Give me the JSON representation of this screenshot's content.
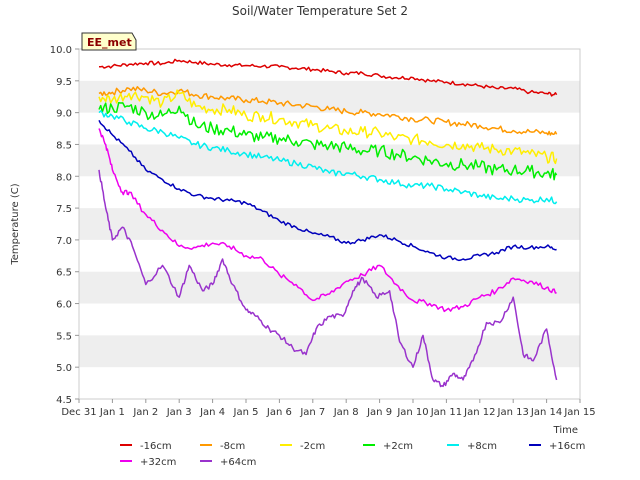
{
  "chart_data": {
    "type": "line",
    "title": "Soil/Water Temperature Set 2",
    "xlabel": "Time",
    "ylabel": "Temperature (C)",
    "site_label": "EE_met",
    "ylim": [
      4.5,
      10.0
    ],
    "yticks": [
      "4.5",
      "5.0",
      "5.5",
      "6.0",
      "6.5",
      "7.0",
      "7.5",
      "8.0",
      "8.5",
      "9.0",
      "9.5",
      "10.0"
    ],
    "xlim": [
      0,
      15
    ],
    "xticks": [
      "Dec 31",
      "Jan 1",
      "Jan 2",
      "Jan 3",
      "Jan 4",
      "Jan 5",
      "Jan 6",
      "Jan 7",
      "Jan 8",
      "Jan 9",
      "Jan 10",
      "Jan 11",
      "Jan 12",
      "Jan 13",
      "Jan 14",
      "Jan 15"
    ],
    "grid": "horizontal bands",
    "legend_position": "bottom",
    "series": [
      {
        "name": "-16cm",
        "color": "#dd0000",
        "x": [
          0.6,
          1.0,
          1.5,
          2.0,
          2.5,
          3.0,
          3.5,
          4.0,
          4.5,
          5.0,
          5.5,
          6.0,
          6.5,
          7.0,
          7.5,
          8.0,
          8.5,
          9.0,
          9.5,
          10.0,
          10.5,
          11.0,
          11.5,
          12.0,
          12.5,
          13.0,
          13.5,
          14.0,
          14.3
        ],
        "y": [
          9.72,
          9.73,
          9.76,
          9.78,
          9.77,
          9.82,
          9.79,
          9.76,
          9.75,
          9.74,
          9.73,
          9.72,
          9.7,
          9.68,
          9.65,
          9.62,
          9.62,
          9.58,
          9.55,
          9.55,
          9.5,
          9.48,
          9.45,
          9.42,
          9.38,
          9.38,
          9.32,
          9.3,
          9.28
        ]
      },
      {
        "name": "-8cm",
        "color": "#ff9900",
        "x": [
          0.6,
          1.0,
          1.5,
          2.0,
          2.5,
          3.0,
          3.5,
          4.0,
          4.5,
          5.0,
          5.5,
          6.0,
          6.5,
          7.0,
          7.5,
          8.0,
          8.5,
          9.0,
          9.5,
          10.0,
          10.5,
          11.0,
          11.5,
          12.0,
          12.5,
          13.0,
          13.5,
          14.0,
          14.3
        ],
        "y": [
          9.3,
          9.32,
          9.38,
          9.35,
          9.3,
          9.35,
          9.28,
          9.25,
          9.22,
          9.2,
          9.18,
          9.15,
          9.12,
          9.1,
          9.05,
          9.02,
          9.0,
          8.98,
          8.95,
          8.9,
          8.88,
          8.85,
          8.82,
          8.8,
          8.75,
          8.72,
          8.7,
          8.68,
          8.66
        ]
      },
      {
        "name": "-2cm",
        "color": "#ffee00",
        "x": [
          0.6,
          1.0,
          1.5,
          2.0,
          2.5,
          3.0,
          3.5,
          4.0,
          4.5,
          5.0,
          5.5,
          6.0,
          6.5,
          7.0,
          7.5,
          8.0,
          8.5,
          9.0,
          9.5,
          10.0,
          10.5,
          11.0,
          11.5,
          12.0,
          12.5,
          13.0,
          13.5,
          14.0,
          14.3
        ],
        "y": [
          9.25,
          9.2,
          9.3,
          9.25,
          9.15,
          9.3,
          9.1,
          9.05,
          9.05,
          8.95,
          8.95,
          8.9,
          8.85,
          8.8,
          8.75,
          8.7,
          8.7,
          8.68,
          8.6,
          8.58,
          8.55,
          8.5,
          8.5,
          8.45,
          8.42,
          8.4,
          8.35,
          8.3,
          8.28
        ]
      },
      {
        "name": "+2cm",
        "color": "#00ee00",
        "x": [
          0.6,
          1.0,
          1.5,
          2.0,
          2.5,
          3.0,
          3.5,
          4.0,
          4.5,
          5.0,
          5.5,
          6.0,
          6.5,
          7.0,
          7.5,
          8.0,
          8.5,
          9.0,
          9.5,
          10.0,
          10.5,
          11.0,
          11.5,
          12.0,
          12.5,
          13.0,
          13.5,
          14.0,
          14.3
        ],
        "y": [
          9.05,
          9.08,
          9.1,
          9.0,
          8.95,
          9.1,
          8.8,
          8.75,
          8.72,
          8.65,
          8.6,
          8.6,
          8.55,
          8.5,
          8.48,
          8.45,
          8.4,
          8.4,
          8.35,
          8.3,
          8.25,
          8.2,
          8.18,
          8.15,
          8.1,
          8.1,
          8.08,
          8.05,
          8.02
        ]
      },
      {
        "name": "+8cm",
        "color": "#00eeee",
        "x": [
          0.6,
          1.0,
          1.5,
          2.0,
          2.5,
          3.0,
          3.5,
          4.0,
          4.5,
          5.0,
          5.5,
          6.0,
          6.5,
          7.0,
          7.5,
          8.0,
          8.5,
          9.0,
          9.5,
          10.0,
          10.5,
          11.0,
          11.5,
          12.0,
          12.5,
          13.0,
          13.5,
          14.0,
          14.3
        ],
        "y": [
          9.0,
          8.95,
          8.85,
          8.75,
          8.7,
          8.6,
          8.5,
          8.45,
          8.4,
          8.35,
          8.3,
          8.25,
          8.2,
          8.15,
          8.05,
          8.05,
          8.0,
          7.95,
          7.9,
          7.85,
          7.85,
          7.8,
          7.75,
          7.7,
          7.65,
          7.65,
          7.62,
          7.65,
          7.6
        ]
      },
      {
        "name": "+16cm",
        "color": "#0000bb",
        "x": [
          0.6,
          1.0,
          1.5,
          2.0,
          2.5,
          3.0,
          3.5,
          4.0,
          4.5,
          5.0,
          5.5,
          6.0,
          6.5,
          7.0,
          7.5,
          8.0,
          8.5,
          9.0,
          9.5,
          10.0,
          10.5,
          11.0,
          11.5,
          12.0,
          12.5,
          13.0,
          13.5,
          14.0,
          14.3
        ],
        "y": [
          8.88,
          8.65,
          8.4,
          8.1,
          7.95,
          7.8,
          7.7,
          7.65,
          7.62,
          7.58,
          7.45,
          7.3,
          7.2,
          7.1,
          7.05,
          6.95,
          7.0,
          7.08,
          7.0,
          6.9,
          6.8,
          6.72,
          6.7,
          6.75,
          6.8,
          6.9,
          6.88,
          6.9,
          6.85
        ]
      },
      {
        "name": "+32cm",
        "color": "#ee00ee",
        "x": [
          0.6,
          0.8,
          1.0,
          1.3,
          1.5,
          2.0,
          2.5,
          3.0,
          3.5,
          4.0,
          4.5,
          5.0,
          5.5,
          6.0,
          6.5,
          7.0,
          7.5,
          8.0,
          8.5,
          9.0,
          9.5,
          10.0,
          10.5,
          11.0,
          11.5,
          12.0,
          12.5,
          13.0,
          13.5,
          14.0,
          14.3
        ],
        "y": [
          8.75,
          8.5,
          8.1,
          7.75,
          7.75,
          7.4,
          7.15,
          6.9,
          6.88,
          6.95,
          6.9,
          6.75,
          6.7,
          6.45,
          6.3,
          6.05,
          6.15,
          6.35,
          6.45,
          6.6,
          6.3,
          6.05,
          6.0,
          5.9,
          5.95,
          6.1,
          6.2,
          6.4,
          6.35,
          6.25,
          6.17
        ]
      },
      {
        "name": "+64cm",
        "color": "#9933cc",
        "x": [
          0.6,
          0.8,
          1.0,
          1.3,
          1.6,
          2.0,
          2.5,
          3.0,
          3.3,
          3.7,
          4.0,
          4.3,
          4.6,
          5.0,
          5.3,
          5.7,
          6.0,
          6.4,
          6.8,
          7.1,
          7.5,
          7.9,
          8.2,
          8.5,
          8.9,
          9.3,
          9.6,
          10.0,
          10.3,
          10.6,
          10.9,
          11.2,
          11.5,
          11.8,
          12.2,
          12.6,
          13.0,
          13.3,
          13.6,
          14.0,
          14.3
        ],
        "y": [
          8.1,
          7.5,
          7.0,
          7.2,
          6.9,
          6.3,
          6.6,
          6.1,
          6.6,
          6.2,
          6.3,
          6.7,
          6.3,
          5.9,
          5.8,
          5.6,
          5.5,
          5.3,
          5.2,
          5.6,
          5.8,
          5.8,
          6.2,
          6.4,
          6.1,
          6.2,
          5.4,
          5.0,
          5.5,
          4.8,
          4.7,
          4.9,
          4.8,
          5.1,
          5.7,
          5.7,
          6.1,
          5.2,
          5.1,
          5.6,
          4.8
        ]
      }
    ]
  }
}
